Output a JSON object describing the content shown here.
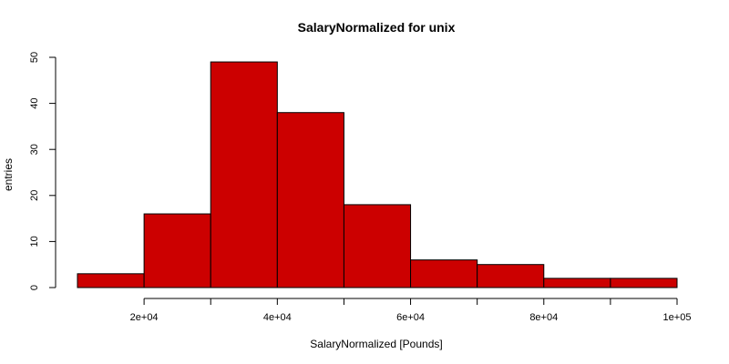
{
  "chart_data": {
    "type": "bar",
    "title": "SalaryNormalized for unix",
    "xlabel": "SalaryNormalized [Pounds]",
    "ylabel": "entries",
    "bar_color": "#cc0000",
    "bins": [
      {
        "x0": 10000,
        "x1": 20000,
        "count": 3
      },
      {
        "x0": 20000,
        "x1": 30000,
        "count": 16
      },
      {
        "x0": 30000,
        "x1": 40000,
        "count": 49
      },
      {
        "x0": 40000,
        "x1": 50000,
        "count": 38
      },
      {
        "x0": 50000,
        "x1": 60000,
        "count": 18
      },
      {
        "x0": 60000,
        "x1": 70000,
        "count": 6
      },
      {
        "x0": 70000,
        "x1": 80000,
        "count": 5
      },
      {
        "x0": 80000,
        "x1": 90000,
        "count": 2
      },
      {
        "x0": 90000,
        "x1": 100000,
        "count": 2
      }
    ],
    "xlim": [
      10000,
      100000
    ],
    "ylim": [
      0,
      50
    ],
    "x_ticks": [
      {
        "value": 20000,
        "label": "2e+04"
      },
      {
        "value": 40000,
        "label": "4e+04"
      },
      {
        "value": 60000,
        "label": "6e+04"
      },
      {
        "value": 80000,
        "label": "8e+04"
      },
      {
        "value": 100000,
        "label": "1e+05"
      }
    ],
    "x_minor_ticks": [
      30000,
      50000,
      70000,
      90000
    ],
    "y_ticks": [
      {
        "value": 0,
        "label": "0"
      },
      {
        "value": 10,
        "label": "10"
      },
      {
        "value": 20,
        "label": "20"
      },
      {
        "value": 30,
        "label": "30"
      },
      {
        "value": 40,
        "label": "40"
      },
      {
        "value": 50,
        "label": "50"
      }
    ],
    "grid": false,
    "legend": "none"
  }
}
